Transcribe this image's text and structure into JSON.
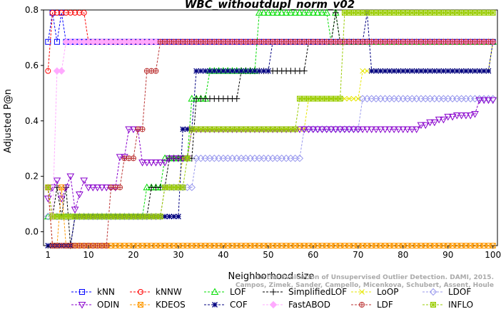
{
  "chart_data": {
    "type": "line",
    "title": "WBC_withoutdupl_norm_v02",
    "xlabel": "Neighborhood size",
    "ylabel": "Adjusted P@n",
    "xlim": [
      0,
      101
    ],
    "ylim": [
      -0.05,
      0.8
    ],
    "x_ticks": [
      1,
      10,
      20,
      30,
      40,
      50,
      60,
      70,
      80,
      90,
      100
    ],
    "y_ticks": [
      0.0,
      0.2,
      0.4,
      0.6,
      0.8
    ],
    "y_tick_labels": [
      "0.0",
      "0.2",
      "0.4",
      "0.6",
      "0.8"
    ],
    "grid": false,
    "legend_position": "bottom",
    "watermark": [
      "On the Evaluation of Unsupervised Outlier Detection. DAMI, 2015.",
      "Campos, Zimek, Sander, Campello, Micenkova, Schubert, Assent, Houle"
    ],
    "series": [
      {
        "name": "kNN",
        "color": "#0000ff",
        "marker": "square",
        "knots": [
          [
            1,
            0.685
          ],
          [
            2,
            0.79
          ],
          [
            3,
            0.685
          ],
          [
            4,
            0.79
          ],
          [
            5,
            0.685
          ],
          [
            6,
            0.685
          ],
          [
            100,
            0.685
          ]
        ]
      },
      {
        "name": "kNNW",
        "color": "#ff0000",
        "marker": "circle",
        "knots": [
          [
            1,
            0.58
          ],
          [
            2,
            0.79
          ],
          [
            3,
            0.79
          ],
          [
            9,
            0.79
          ],
          [
            10,
            0.685
          ],
          [
            100,
            0.685
          ]
        ]
      },
      {
        "name": "LOF",
        "color": "#00dd00",
        "marker": "triangle-up",
        "knots": [
          [
            1,
            0.055
          ],
          [
            22,
            0.055
          ],
          [
            23,
            0.16
          ],
          [
            26,
            0.16
          ],
          [
            27,
            0.265
          ],
          [
            32,
            0.265
          ],
          [
            33,
            0.48
          ],
          [
            36,
            0.48
          ],
          [
            37,
            0.58
          ],
          [
            47,
            0.58
          ],
          [
            48,
            0.79
          ],
          [
            63,
            0.79
          ],
          [
            64,
            0.685
          ],
          [
            65,
            0.79
          ],
          [
            66,
            0.685
          ],
          [
            100,
            0.685
          ]
        ]
      },
      {
        "name": "SimplifiedLOF",
        "color": "#000000",
        "marker": "plus",
        "knots": [
          [
            1,
            0.16
          ],
          [
            2,
            0.055
          ],
          [
            3,
            0.16
          ],
          [
            4,
            0.055
          ],
          [
            5,
            0.16
          ],
          [
            6,
            -0.05
          ],
          [
            7,
            0.055
          ],
          [
            23,
            0.055
          ],
          [
            24,
            0.16
          ],
          [
            27,
            0.16
          ],
          [
            28,
            0.265
          ],
          [
            33,
            0.265
          ],
          [
            34,
            0.48
          ],
          [
            43,
            0.48
          ],
          [
            44,
            0.58
          ],
          [
            58,
            0.58
          ],
          [
            59,
            0.685
          ],
          [
            64,
            0.685
          ],
          [
            65,
            0.79
          ],
          [
            66,
            0.685
          ],
          [
            100,
            0.685
          ]
        ]
      },
      {
        "name": "LoOP",
        "color": "#e6e600",
        "marker": "cross",
        "knots": [
          [
            1,
            0.16
          ],
          [
            2,
            0.055
          ],
          [
            26,
            0.055
          ],
          [
            27,
            0.16
          ],
          [
            30,
            0.16
          ],
          [
            31,
            0.265
          ],
          [
            33,
            0.37
          ],
          [
            58,
            0.37
          ],
          [
            59,
            0.48
          ],
          [
            70,
            0.48
          ],
          [
            71,
            0.58
          ],
          [
            99,
            0.58
          ],
          [
            100,
            0.685
          ]
        ]
      },
      {
        "name": "LDOF",
        "color": "#9999ee",
        "marker": "diamond",
        "knots": [
          [
            1,
            0.055
          ],
          [
            26,
            0.055
          ],
          [
            27,
            0.16
          ],
          [
            33,
            0.16
          ],
          [
            34,
            0.265
          ],
          [
            57,
            0.265
          ],
          [
            58,
            0.37
          ],
          [
            70,
            0.37
          ],
          [
            71,
            0.48
          ],
          [
            100,
            0.48
          ]
        ]
      },
      {
        "name": "ODIN",
        "color": "#8800cc",
        "marker": "triangle-down",
        "knots": [
          [
            1,
            0.12
          ],
          [
            2,
            0.16
          ],
          [
            3,
            0.185
          ],
          [
            4,
            0.12
          ],
          [
            5,
            0.16
          ],
          [
            6,
            0.2
          ],
          [
            7,
            0.08
          ],
          [
            8,
            0.135
          ],
          [
            9,
            0.185
          ],
          [
            10,
            0.16
          ],
          [
            16,
            0.16
          ],
          [
            17,
            0.27
          ],
          [
            18,
            0.27
          ],
          [
            19,
            0.37
          ],
          [
            21,
            0.37
          ],
          [
            22,
            0.25
          ],
          [
            27,
            0.25
          ],
          [
            28,
            0.265
          ],
          [
            32,
            0.265
          ],
          [
            33,
            0.37
          ],
          [
            82,
            0.37
          ],
          [
            84,
            0.385
          ],
          [
            86,
            0.395
          ],
          [
            88,
            0.405
          ],
          [
            90,
            0.415
          ],
          [
            92,
            0.42
          ],
          [
            96,
            0.425
          ],
          [
            97,
            0.475
          ],
          [
            100,
            0.475
          ]
        ]
      },
      {
        "name": "KDEOS",
        "color": "#ff9900",
        "marker": "square-x",
        "knots": [
          [
            1,
            0.16
          ],
          [
            2,
            -0.05
          ],
          [
            3,
            -0.05
          ],
          [
            4,
            0.16
          ],
          [
            5,
            -0.05
          ],
          [
            100,
            -0.05
          ]
        ]
      },
      {
        "name": "COF",
        "color": "#000080",
        "marker": "asterisk",
        "knots": [
          [
            1,
            -0.05
          ],
          [
            6,
            -0.05
          ],
          [
            7,
            0.055
          ],
          [
            30,
            0.055
          ],
          [
            31,
            0.37
          ],
          [
            33,
            0.37
          ],
          [
            34,
            0.58
          ],
          [
            50,
            0.58
          ],
          [
            51,
            0.685
          ],
          [
            71,
            0.685
          ],
          [
            72,
            0.79
          ],
          [
            73,
            0.58
          ],
          [
            99,
            0.58
          ],
          [
            100,
            0.685
          ]
        ]
      },
      {
        "name": "FastABOD",
        "color": "#ffaaff",
        "marker": "diamond-filled",
        "knots": [
          [
            1,
            0.16
          ],
          [
            2,
            0.055
          ],
          [
            3,
            0.58
          ],
          [
            4,
            0.58
          ],
          [
            5,
            0.685
          ],
          [
            100,
            0.685
          ]
        ]
      },
      {
        "name": "LDF",
        "color": "#bb3333",
        "marker": "circle-plus",
        "knots": [
          [
            1,
            0.16
          ],
          [
            2,
            -0.05
          ],
          [
            14,
            -0.05
          ],
          [
            15,
            0.16
          ],
          [
            17,
            0.16
          ],
          [
            18,
            0.265
          ],
          [
            20,
            0.265
          ],
          [
            21,
            0.37
          ],
          [
            22,
            0.37
          ],
          [
            23,
            0.58
          ],
          [
            25,
            0.58
          ],
          [
            26,
            0.685
          ],
          [
            100,
            0.685
          ]
        ]
      },
      {
        "name": "INFLO",
        "color": "#99cc00",
        "marker": "square-asterisk",
        "knots": [
          [
            1,
            0.16
          ],
          [
            2,
            0.055
          ],
          [
            26,
            0.055
          ],
          [
            27,
            0.16
          ],
          [
            31,
            0.16
          ],
          [
            32,
            0.265
          ],
          [
            33,
            0.37
          ],
          [
            56,
            0.37
          ],
          [
            57,
            0.48
          ],
          [
            66,
            0.48
          ],
          [
            67,
            0.79
          ],
          [
            100,
            0.79
          ]
        ]
      }
    ]
  }
}
